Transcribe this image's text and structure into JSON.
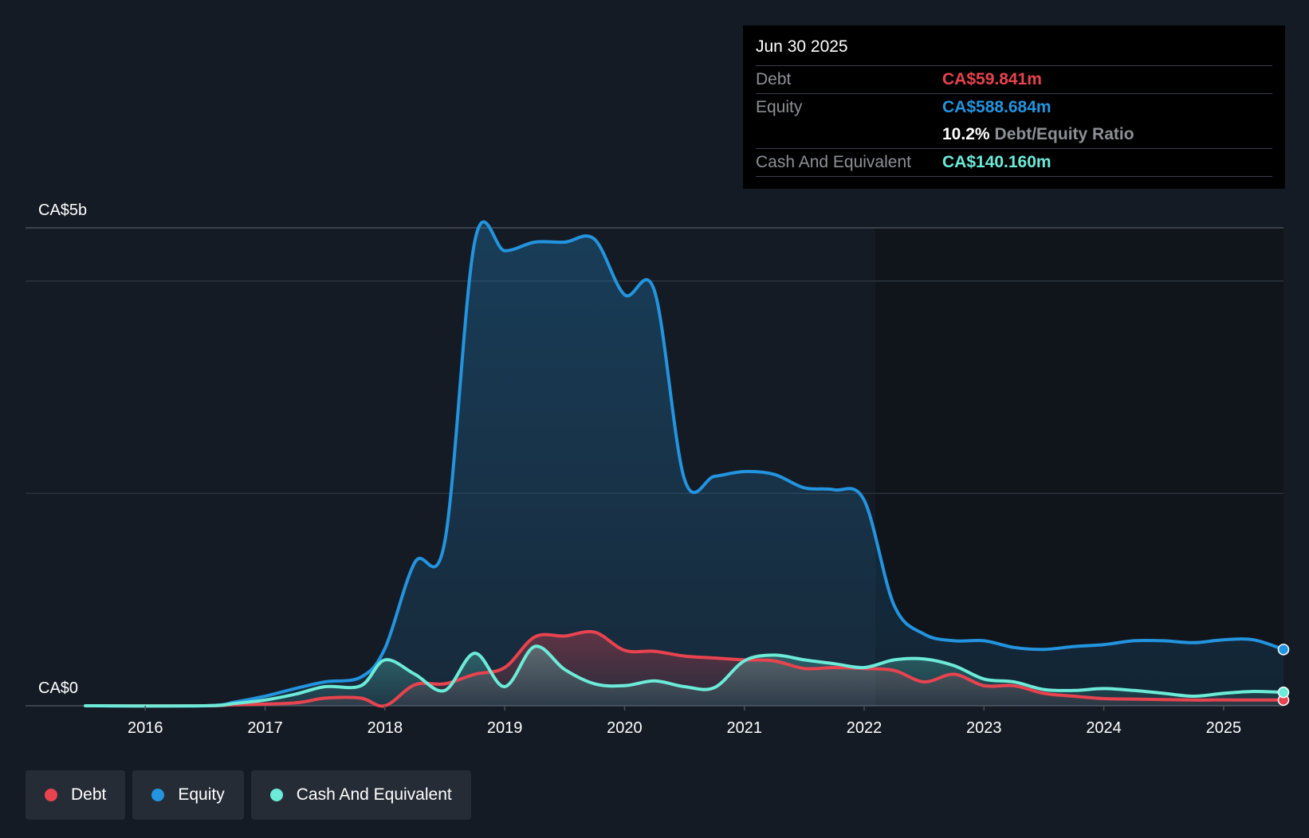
{
  "chart_data": {
    "type": "area",
    "y_top_label": "CA$5b",
    "y_bottom_label": "CA$0",
    "ylim": [
      0,
      5000
    ],
    "xlim": [
      2015.0,
      2025.5
    ],
    "x_ticks": [
      "2016",
      "2017",
      "2018",
      "2019",
      "2020",
      "2021",
      "2022",
      "2023",
      "2024",
      "2025"
    ],
    "series": [
      {
        "name": "Debt",
        "color": "#e8434f",
        "points": [
          [
            2015.5,
            0
          ],
          [
            2016.5,
            0
          ],
          [
            2016.75,
            10
          ],
          [
            2017.25,
            30
          ],
          [
            2017.5,
            80
          ],
          [
            2017.8,
            80
          ],
          [
            2018.0,
            0
          ],
          [
            2018.25,
            220
          ],
          [
            2018.5,
            230
          ],
          [
            2018.75,
            330
          ],
          [
            2019.0,
            400
          ],
          [
            2019.25,
            720
          ],
          [
            2019.5,
            730
          ],
          [
            2019.75,
            770
          ],
          [
            2020.0,
            580
          ],
          [
            2020.25,
            570
          ],
          [
            2020.5,
            520
          ],
          [
            2020.75,
            500
          ],
          [
            2021.0,
            480
          ],
          [
            2021.25,
            470
          ],
          [
            2021.5,
            390
          ],
          [
            2021.75,
            400
          ],
          [
            2022.0,
            390
          ],
          [
            2022.25,
            370
          ],
          [
            2022.5,
            250
          ],
          [
            2022.75,
            330
          ],
          [
            2023.0,
            210
          ],
          [
            2023.25,
            210
          ],
          [
            2023.5,
            130
          ],
          [
            2023.75,
            100
          ],
          [
            2024.0,
            75
          ],
          [
            2024.25,
            70
          ],
          [
            2024.5,
            65
          ],
          [
            2024.75,
            60
          ],
          [
            2025.0,
            62
          ],
          [
            2025.25,
            60
          ],
          [
            2025.5,
            59.841
          ]
        ]
      },
      {
        "name": "Equity",
        "color": "#2394df",
        "points": [
          [
            2015.5,
            0
          ],
          [
            2016.5,
            0
          ],
          [
            2016.75,
            40
          ],
          [
            2017.0,
            100
          ],
          [
            2017.25,
            180
          ],
          [
            2017.5,
            250
          ],
          [
            2017.8,
            300
          ],
          [
            2018.0,
            600
          ],
          [
            2018.25,
            1500
          ],
          [
            2018.5,
            1720
          ],
          [
            2018.75,
            4860
          ],
          [
            2019.0,
            4760
          ],
          [
            2019.25,
            4850
          ],
          [
            2019.5,
            4850
          ],
          [
            2019.75,
            4880
          ],
          [
            2020.0,
            4300
          ],
          [
            2020.25,
            4340
          ],
          [
            2020.5,
            2370
          ],
          [
            2020.75,
            2400
          ],
          [
            2021.0,
            2450
          ],
          [
            2021.25,
            2420
          ],
          [
            2021.5,
            2280
          ],
          [
            2021.75,
            2260
          ],
          [
            2022.0,
            2150
          ],
          [
            2022.25,
            1050
          ],
          [
            2022.5,
            750
          ],
          [
            2022.75,
            680
          ],
          [
            2023.0,
            680
          ],
          [
            2023.25,
            610
          ],
          [
            2023.5,
            590
          ],
          [
            2023.75,
            620
          ],
          [
            2024.0,
            640
          ],
          [
            2024.25,
            680
          ],
          [
            2024.5,
            680
          ],
          [
            2024.75,
            660
          ],
          [
            2025.0,
            690
          ],
          [
            2025.25,
            690
          ],
          [
            2025.5,
            588.684
          ]
        ]
      },
      {
        "name": "Cash And Equivalent",
        "color": "#6cebd8",
        "points": [
          [
            2015.5,
            0
          ],
          [
            2016.5,
            0
          ],
          [
            2016.75,
            25
          ],
          [
            2017.0,
            60
          ],
          [
            2017.25,
            120
          ],
          [
            2017.5,
            200
          ],
          [
            2017.8,
            210
          ],
          [
            2018.0,
            480
          ],
          [
            2018.25,
            330
          ],
          [
            2018.5,
            160
          ],
          [
            2018.75,
            550
          ],
          [
            2019.0,
            200
          ],
          [
            2019.25,
            620
          ],
          [
            2019.5,
            380
          ],
          [
            2019.75,
            230
          ],
          [
            2020.0,
            210
          ],
          [
            2020.25,
            260
          ],
          [
            2020.5,
            200
          ],
          [
            2020.75,
            190
          ],
          [
            2021.0,
            470
          ],
          [
            2021.25,
            530
          ],
          [
            2021.5,
            480
          ],
          [
            2021.75,
            440
          ],
          [
            2022.0,
            400
          ],
          [
            2022.25,
            480
          ],
          [
            2022.5,
            490
          ],
          [
            2022.75,
            420
          ],
          [
            2023.0,
            280
          ],
          [
            2023.25,
            250
          ],
          [
            2023.5,
            170
          ],
          [
            2023.75,
            160
          ],
          [
            2024.0,
            180
          ],
          [
            2024.25,
            160
          ],
          [
            2024.5,
            130
          ],
          [
            2024.75,
            100
          ],
          [
            2025.0,
            130
          ],
          [
            2025.25,
            150
          ],
          [
            2025.5,
            140.16
          ]
        ]
      }
    ]
  },
  "tooltip": {
    "date": "Jun 30 2025",
    "debt_label": "Debt",
    "debt_value": "CA$59.841m",
    "equity_label": "Equity",
    "equity_value": "CA$588.684m",
    "ratio_value": "10.2%",
    "ratio_label": "Debt/Equity Ratio",
    "cash_label": "Cash And Equivalent",
    "cash_value": "CA$140.160m"
  },
  "legend": [
    {
      "label": "Debt",
      "color": "#e8434f"
    },
    {
      "label": "Equity",
      "color": "#2394df"
    },
    {
      "label": "Cash And Equivalent",
      "color": "#6cebd8"
    }
  ]
}
